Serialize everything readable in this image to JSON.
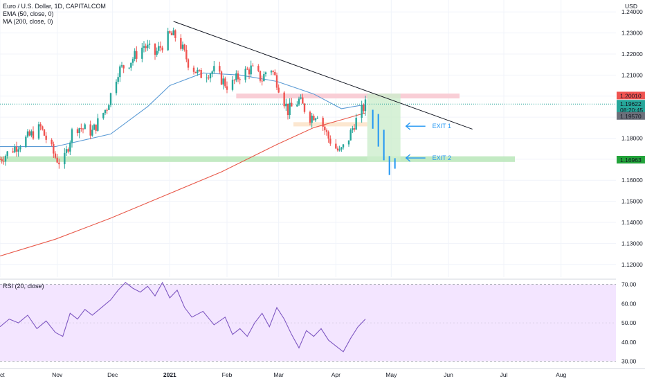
{
  "header": {
    "title": "Euro / U.S. Dollar, 1D, CAPITALCOM",
    "ema_label": "EMA (50, close, 0)",
    "ma_label": "MA (200, close, 0)",
    "currency": "USD"
  },
  "rsi": {
    "label": "RSI (20, close)"
  },
  "trade_labels": {
    "exit1": "EXIT 1",
    "exit2": "EXIT 2"
  },
  "price_tags": {
    "upper": "1.20010",
    "current": "1.19622",
    "countdown": "08:20:45",
    "lower_gray": "1.19570",
    "green": "1.16963"
  },
  "colors": {
    "up": "#26a69a",
    "down": "#ef5350",
    "ema": "#5b9bd5",
    "ma": "#e8594a",
    "rsi_line": "#7e57c2",
    "rsi_band": "#f3e5ff",
    "resist_zone": "#f8c6cf",
    "support_zone": "#b9e6b9",
    "exit_arrow": "#2196f3"
  },
  "chart_data": [
    {
      "type": "candlestick",
      "title": "Euro / U.S. Dollar, 1D, CAPITALCOM",
      "x_tick_labels": [
        "Oct",
        "Nov",
        "Dec",
        "2021",
        "Feb",
        "Mar",
        "Apr",
        "May",
        "Jun",
        "Jul",
        "Aug"
      ],
      "y_ticks": [
        1.24,
        1.23,
        1.22,
        1.21,
        1.2,
        1.19,
        1.18,
        1.17,
        1.16,
        1.15,
        1.14,
        1.13,
        1.12
      ],
      "ylim": [
        1.114,
        1.245
      ],
      "x_index_range": [
        0,
        330
      ],
      "month_start_index": [
        0,
        31,
        61,
        92,
        123,
        151,
        182,
        212,
        243,
        273,
        304
      ],
      "ohlc_keypoints": [
        {
          "i": 0,
          "c": 1.17
        },
        {
          "i": 10,
          "c": 1.177
        },
        {
          "i": 22,
          "c": 1.185
        },
        {
          "i": 30,
          "c": 1.171
        },
        {
          "i": 34,
          "c": 1.167
        },
        {
          "i": 40,
          "c": 1.186
        },
        {
          "i": 50,
          "c": 1.183
        },
        {
          "i": 58,
          "c": 1.195
        },
        {
          "i": 64,
          "c": 1.212
        },
        {
          "i": 70,
          "c": 1.216
        },
        {
          "i": 78,
          "c": 1.224
        },
        {
          "i": 84,
          "c": 1.22
        },
        {
          "i": 92,
          "c": 1.229
        },
        {
          "i": 96,
          "c": 1.228
        },
        {
          "i": 102,
          "c": 1.216
        },
        {
          "i": 108,
          "c": 1.21
        },
        {
          "i": 116,
          "c": 1.212
        },
        {
          "i": 124,
          "c": 1.204
        },
        {
          "i": 130,
          "c": 1.21
        },
        {
          "i": 136,
          "c": 1.213
        },
        {
          "i": 142,
          "c": 1.208
        },
        {
          "i": 146,
          "c": 1.215
        },
        {
          "i": 150,
          "c": 1.207
        },
        {
          "i": 156,
          "c": 1.193
        },
        {
          "i": 162,
          "c": 1.198
        },
        {
          "i": 168,
          "c": 1.19
        },
        {
          "i": 172,
          "c": 1.192
        },
        {
          "i": 178,
          "c": 1.18
        },
        {
          "i": 184,
          "c": 1.173
        },
        {
          "i": 188,
          "c": 1.178
        },
        {
          "i": 192,
          "c": 1.187
        },
        {
          "i": 196,
          "c": 1.193
        },
        {
          "i": 198,
          "c": 1.196
        }
      ],
      "series": [
        {
          "name": "EMA (50, close, 0)",
          "type": "line",
          "x": [
            0,
            30,
            60,
            80,
            92,
            110,
            130,
            150,
            170,
            185,
            198
          ],
          "values": [
            1.176,
            1.176,
            1.182,
            1.195,
            1.205,
            1.211,
            1.21,
            1.207,
            1.201,
            1.194,
            1.196
          ]
        },
        {
          "name": "MA (200, close, 0)",
          "type": "line",
          "x": [
            0,
            30,
            60,
            90,
            120,
            150,
            170,
            190,
            198
          ],
          "values": [
            1.124,
            1.132,
            1.142,
            1.153,
            1.164,
            1.177,
            1.185,
            1.19,
            1.192
          ]
        }
      ],
      "trendline": {
        "from": {
          "i": 94,
          "price": 1.2355
        },
        "to": {
          "i": 256,
          "price": 1.1843
        }
      },
      "zones": [
        {
          "kind": "resistance",
          "i_start": 128,
          "i_end": 249,
          "price_top": 1.2012,
          "price_bottom": 1.1989
        },
        {
          "kind": "support",
          "i_start": 0,
          "i_end": 279,
          "price_top": 1.1714,
          "price_bottom": 1.1687
        },
        {
          "kind": "entry",
          "i_start": 159,
          "i_end": 199,
          "price_top": 1.1876,
          "price_bottom": 1.1856
        },
        {
          "kind": "target",
          "i_start": 199,
          "i_end": 217,
          "price_top": 1.2012,
          "price_bottom": 1.1694
        }
      ],
      "projection": [
        {
          "i": 202,
          "h": 1.1935,
          "l": 1.1845
        },
        {
          "i": 205,
          "h": 1.1915,
          "l": 1.176
        },
        {
          "i": 208,
          "h": 1.184,
          "l": 1.1695
        },
        {
          "i": 211,
          "h": 1.1715,
          "l": 1.1625
        },
        {
          "i": 214,
          "h": 1.1705,
          "l": 1.1655
        }
      ],
      "exits": [
        {
          "label": "EXIT 1",
          "price": 1.1857,
          "i": 220
        },
        {
          "label": "EXIT 2",
          "price": 1.1706,
          "i": 220
        }
      ],
      "price_tags": [
        1.2001,
        1.19622,
        1.1957,
        1.16963
      ]
    },
    {
      "type": "line",
      "title": "RSI (20, close)",
      "y_ticks": [
        70,
        60,
        50,
        40,
        30
      ],
      "ylim": [
        27,
        72
      ],
      "band": [
        30,
        70
      ],
      "series": [
        {
          "name": "RSI (20, close)",
          "x": [
            0,
            5,
            10,
            15,
            20,
            25,
            30,
            34,
            38,
            42,
            46,
            50,
            55,
            60,
            64,
            68,
            72,
            76,
            80,
            84,
            88,
            92,
            96,
            100,
            104,
            110,
            116,
            122,
            126,
            130,
            134,
            138,
            142,
            146,
            150,
            154,
            158,
            162,
            166,
            170,
            174,
            178,
            182,
            186,
            190,
            194,
            198
          ],
          "values": [
            48,
            52,
            50,
            54,
            47,
            51,
            45,
            43,
            55,
            52,
            57,
            54,
            58,
            62,
            67,
            71,
            68,
            66,
            69,
            64,
            71,
            63,
            67,
            58,
            53,
            56,
            49,
            53,
            44,
            47,
            43,
            50,
            55,
            48,
            58,
            52,
            44,
            37,
            46,
            43,
            47,
            41,
            38,
            35,
            42,
            48,
            52
          ]
        }
      ]
    }
  ]
}
